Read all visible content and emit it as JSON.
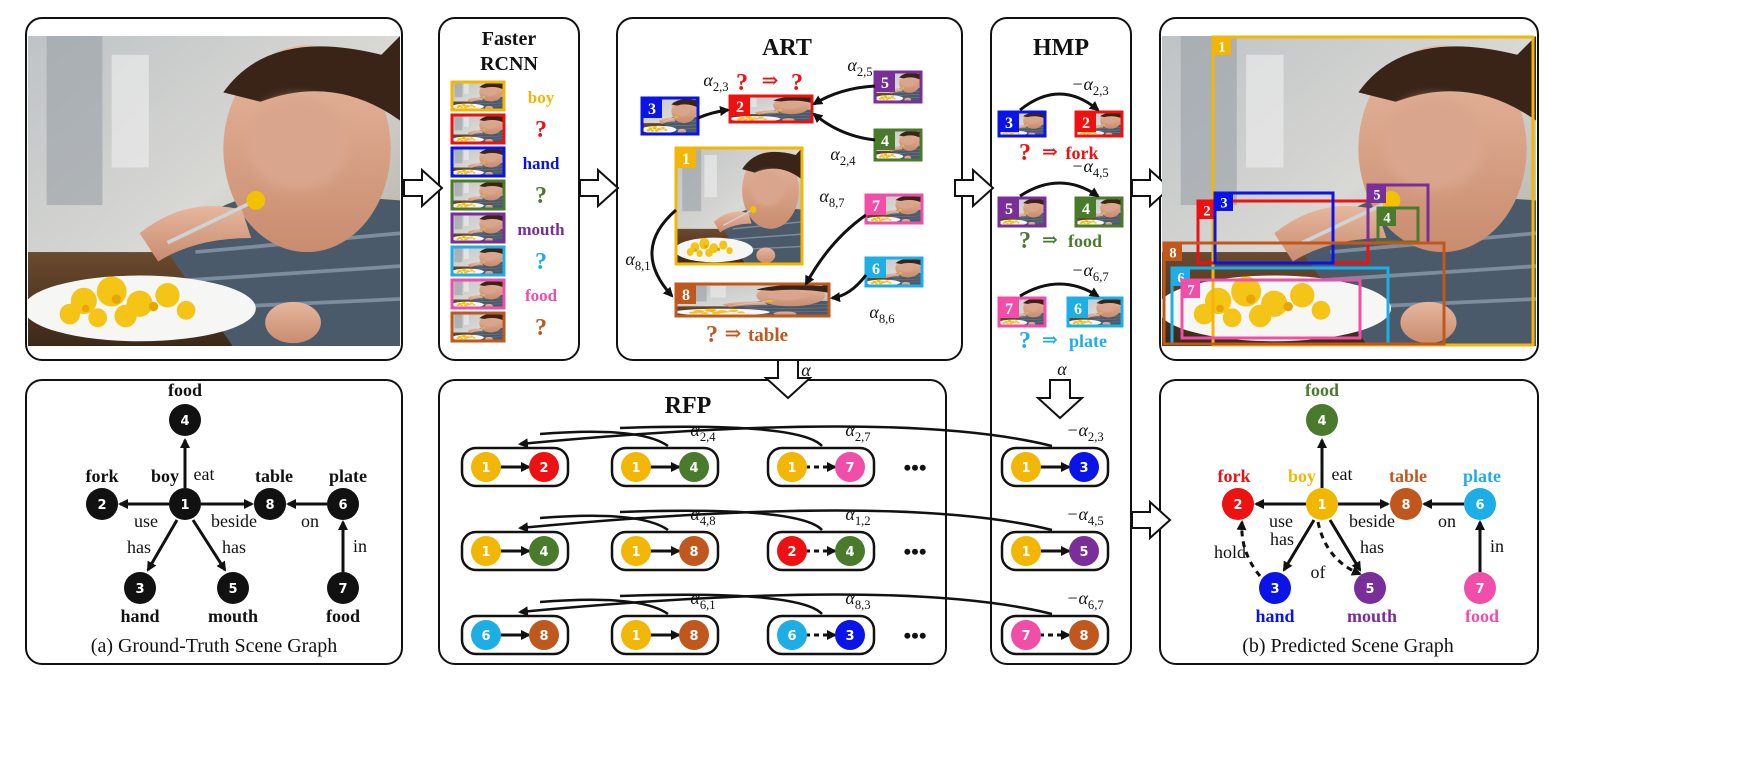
{
  "colors": {
    "n1": "#f2b705",
    "n2": "#ee1111",
    "n3": "#0a14e6",
    "n4": "#4a7a2c",
    "n5": "#7a2e99",
    "n6": "#1eaee6",
    "n7": "#f04ea8",
    "n8": "#c0581e",
    "black": "#111111"
  },
  "gt_graph": {
    "caption": "(a) Ground-Truth Scene Graph",
    "node_numbers": [
      "1",
      "2",
      "3",
      "4",
      "5",
      "6",
      "7",
      "8"
    ],
    "labels": {
      "boy": "boy",
      "fork": "fork",
      "hand": "hand",
      "food_top": "food",
      "mouth": "mouth",
      "table": "table",
      "plate": "plate",
      "food_bottom": "food"
    },
    "edges": {
      "eat": "eat",
      "use": "use",
      "beside": "beside",
      "has1": "has",
      "has2": "has",
      "on": "on",
      "in": "in"
    }
  },
  "faster_rcnn": {
    "title_line1": "Faster",
    "title_line2": "RCNN",
    "labels": [
      "boy",
      "?",
      "hand",
      "?",
      "mouth",
      "?",
      "food",
      "?"
    ]
  },
  "art": {
    "title": "ART",
    "alphas": [
      "α2,3",
      "α2,5",
      "α2,4",
      "α8,7",
      "α8,1",
      "α8,6"
    ],
    "box_numbers": [
      "1",
      "2",
      "3",
      "4",
      "5",
      "6",
      "7",
      "8"
    ],
    "question_pair": "? ⇒ ?",
    "result_q": "?",
    "result_arrow": "⇒",
    "result_label": "table"
  },
  "hmp": {
    "title": "HMP",
    "alphas": [
      "−α2,3",
      "−α4,5",
      "−α6,7"
    ],
    "results": [
      {
        "q": "?",
        "arrow": "⇒",
        "label": "fork"
      },
      {
        "q": "?",
        "arrow": "⇒",
        "label": "food"
      },
      {
        "q": "?",
        "arrow": "⇒",
        "label": "plate"
      }
    ],
    "down_alpha": "α"
  },
  "rfp": {
    "title": "RFP",
    "down_alpha": "α",
    "alphas_row1": [
      "α2,4",
      "α2,7",
      "−α2,3"
    ],
    "alphas_row2": [
      "α4,8",
      "α1,2",
      "−α4,5"
    ],
    "alphas_row3": [
      "α6,1",
      "α8,3",
      "−α6,7"
    ],
    "ellipsis": "•••",
    "pairs": [
      [
        "1",
        "2"
      ],
      [
        "1",
        "4"
      ],
      [
        "1",
        "7"
      ],
      [
        "1",
        "3"
      ],
      [
        "1",
        "4"
      ],
      [
        "1",
        "8"
      ],
      [
        "2",
        "4"
      ],
      [
        "1",
        "5"
      ],
      [
        "6",
        "8"
      ],
      [
        "1",
        "8"
      ],
      [
        "6",
        "3"
      ],
      [
        "7",
        "8"
      ]
    ]
  },
  "pred_graph": {
    "caption": "(b) Predicted Scene Graph",
    "labels": {
      "boy": "boy",
      "fork": "fork",
      "hand": "hand",
      "food_top": "food",
      "mouth": "mouth",
      "table": "table",
      "plate": "plate",
      "food_bottom": "food"
    },
    "edges": {
      "eat": "eat",
      "use": "use",
      "has1": "has",
      "has2": "has",
      "beside": "beside",
      "on": "on",
      "in": "in",
      "hold": "hold",
      "of": "of"
    }
  },
  "detections": [
    "1",
    "2",
    "3",
    "4",
    "5",
    "6",
    "7",
    "8"
  ]
}
